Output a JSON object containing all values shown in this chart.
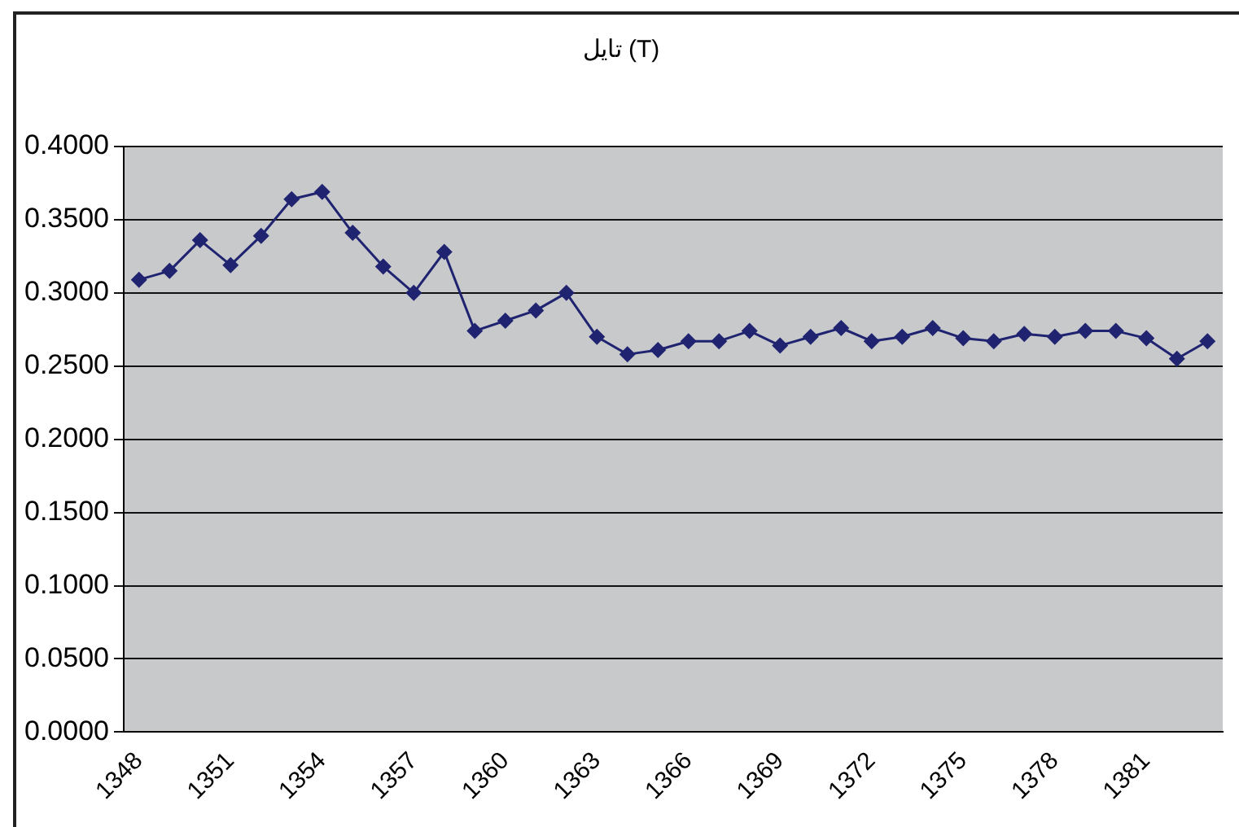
{
  "chart_data": {
    "type": "line",
    "title": "تایل (T)",
    "categories": [
      "1348",
      null,
      null,
      "1351",
      null,
      null,
      "1354",
      null,
      null,
      "1357",
      null,
      null,
      "1360",
      null,
      null,
      "1363",
      null,
      null,
      "1366",
      null,
      null,
      "1369",
      null,
      null,
      "1372",
      null,
      null,
      "1375",
      null,
      null,
      "1378",
      null,
      null,
      "1381",
      null,
      null
    ],
    "series": [
      {
        "color": "#1f2370",
        "values": [
          0.309,
          0.315,
          0.336,
          0.319,
          0.339,
          0.364,
          0.369,
          0.341,
          0.318,
          0.3,
          0.328,
          0.274,
          0.281,
          0.288,
          0.3,
          0.27,
          0.258,
          0.261,
          0.267,
          0.267,
          0.274,
          0.264,
          0.27,
          0.276,
          0.267,
          0.27,
          0.276,
          0.269,
          0.267,
          0.272,
          0.27,
          0.274,
          0.274,
          0.269,
          0.255,
          0.267
        ]
      }
    ],
    "ylim": [
      0,
      0.4
    ],
    "yticks": [
      {
        "value": 0,
        "label": "0.0000"
      },
      {
        "value": 0.05,
        "label": "0.0500"
      },
      {
        "value": 0.1,
        "label": "0.1000"
      },
      {
        "value": 0.15,
        "label": "0.1500"
      },
      {
        "value": 0.2,
        "label": "0.2000"
      },
      {
        "value": 0.25,
        "label": "0.2500"
      },
      {
        "value": 0.3,
        "label": "0.3000"
      },
      {
        "value": 0.35,
        "label": "0.3500"
      },
      {
        "value": 0.4,
        "label": "0.4000"
      }
    ],
    "grid": "y",
    "legend": false,
    "marker": "diamond",
    "line_style": "solid"
  }
}
